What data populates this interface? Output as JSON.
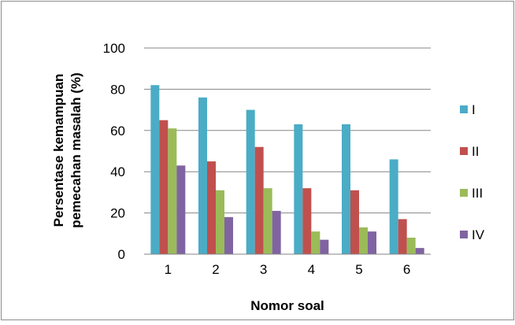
{
  "chart_data": {
    "type": "bar",
    "title": "",
    "xlabel": "Nomor soal",
    "ylabel_lines": [
      "Persentase kemampuan",
      "pemecahan masalah (%)"
    ],
    "categories": [
      "1",
      "2",
      "3",
      "4",
      "5",
      "6"
    ],
    "ylim": [
      0,
      100
    ],
    "yticks": [
      "0",
      "20",
      "40",
      "60",
      "80",
      "100"
    ],
    "grid": true,
    "legend_position": "right",
    "series": [
      {
        "name": "I",
        "color": "#4BACC6",
        "values": [
          82,
          76,
          70,
          63,
          63,
          46
        ]
      },
      {
        "name": "II",
        "color": "#C0504D",
        "values": [
          65,
          45,
          52,
          32,
          31,
          17
        ]
      },
      {
        "name": "III",
        "color": "#9BBB59",
        "values": [
          61,
          31,
          32,
          11,
          13,
          8
        ]
      },
      {
        "name": "IV",
        "color": "#8064A2",
        "values": [
          43,
          18,
          21,
          7,
          11,
          3
        ]
      }
    ]
  }
}
